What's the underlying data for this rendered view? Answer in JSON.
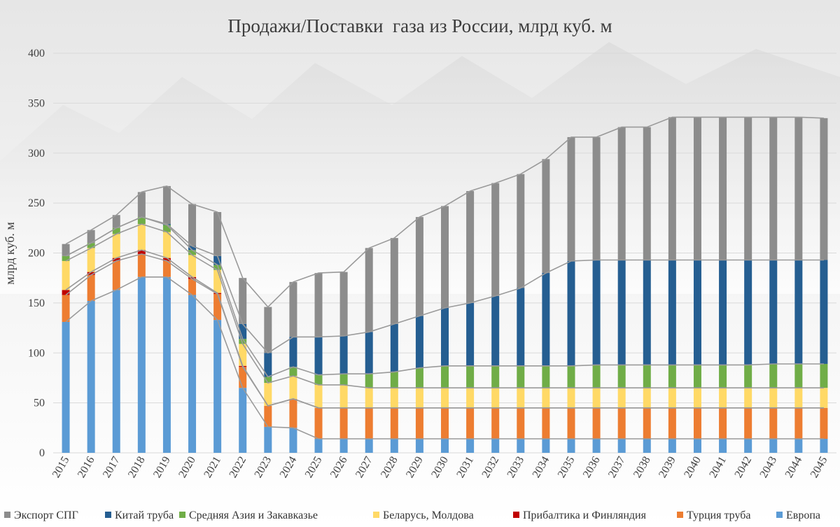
{
  "chart_data": {
    "type": "bar",
    "stacked": true,
    "title": "Продажи/Поставки  газа из России, млрд куб. м",
    "ylabel": "млрд куб. м",
    "xlabel": "",
    "ylim": [
      0,
      400
    ],
    "yticks": [
      0,
      50,
      100,
      150,
      200,
      250,
      300,
      350,
      400
    ],
    "grid": true,
    "series_lines": true,
    "legend_position": "bottom",
    "categories": [
      "2015",
      "2016",
      "2017",
      "2018",
      "2019",
      "2020",
      "2021",
      "2022",
      "2023",
      "2024",
      "2025",
      "2026",
      "2027",
      "2028",
      "2029",
      "2030",
      "2031",
      "2032",
      "2033",
      "2034",
      "2035",
      "2036",
      "2037",
      "2038",
      "2039",
      "2040",
      "2041",
      "2042",
      "2043",
      "2044",
      "2045"
    ],
    "series": [
      {
        "name": "Европа",
        "color": "#5b9bd5",
        "values": [
          131,
          152,
          163,
          176,
          176,
          158,
          133,
          65,
          26,
          25,
          14,
          14,
          14,
          14,
          14,
          14,
          14,
          14,
          14,
          14,
          14,
          14,
          14,
          14,
          14,
          14,
          14,
          14,
          14,
          14,
          14
        ]
      },
      {
        "name": "Турция труба",
        "color": "#ed7d31",
        "values": [
          27,
          26,
          29,
          23,
          16,
          16,
          26,
          21,
          21,
          29,
          31,
          31,
          31,
          31,
          31,
          31,
          31,
          31,
          31,
          31,
          31,
          31,
          31,
          31,
          31,
          31,
          31,
          31,
          31,
          31,
          31
        ]
      },
      {
        "name": "Прибалтика и Финляндия",
        "color": "#c00000",
        "values": [
          5,
          3,
          3,
          4,
          3,
          2,
          1,
          1,
          0,
          0,
          0,
          0,
          0,
          0,
          0,
          0,
          0,
          0,
          0,
          0,
          0,
          0,
          0,
          0,
          0,
          0,
          0,
          0,
          0,
          0,
          0
        ]
      },
      {
        "name": "Беларусь, Молдова",
        "color": "#ffd966",
        "values": [
          29,
          24,
          24,
          26,
          26,
          22,
          23,
          22,
          23,
          23,
          23,
          23,
          20,
          20,
          20,
          20,
          20,
          20,
          20,
          20,
          20,
          20,
          20,
          20,
          20,
          20,
          20,
          20,
          20,
          20,
          20
        ]
      },
      {
        "name": "Средняя Азия и Закавказье",
        "color": "#70ad47",
        "values": [
          5,
          5,
          6,
          7,
          7,
          5,
          5,
          5,
          6,
          9,
          10,
          11,
          14,
          16,
          20,
          22,
          22,
          22,
          22,
          22,
          22,
          23,
          23,
          23,
          23,
          23,
          23,
          23,
          24,
          24,
          24
        ]
      },
      {
        "name": "Китай труба",
        "color": "#255e91",
        "values": [
          0,
          0,
          0,
          0,
          1,
          4,
          9,
          15,
          24,
          30,
          38,
          38,
          42,
          48,
          52,
          58,
          63,
          70,
          78,
          93,
          105,
          105,
          105,
          105,
          105,
          105,
          105,
          105,
          104,
          104,
          104
        ]
      },
      {
        "name": "Экспорт СПГ",
        "color": "#8c8c8c",
        "values": [
          12,
          13,
          13,
          25,
          38,
          42,
          44,
          46,
          46,
          55,
          64,
          64,
          84,
          86,
          99,
          102,
          112,
          113,
          114,
          114,
          124,
          123,
          133,
          133,
          143,
          143,
          143,
          143,
          143,
          143,
          142
        ]
      }
    ],
    "legend_order": [
      "Экспорт СПГ",
      "Китай труба",
      "Средняя Азия и Закавказье",
      "Беларусь, Молдова",
      "Прибалтика и Финляндия",
      "Турция труба",
      "Европа"
    ]
  }
}
